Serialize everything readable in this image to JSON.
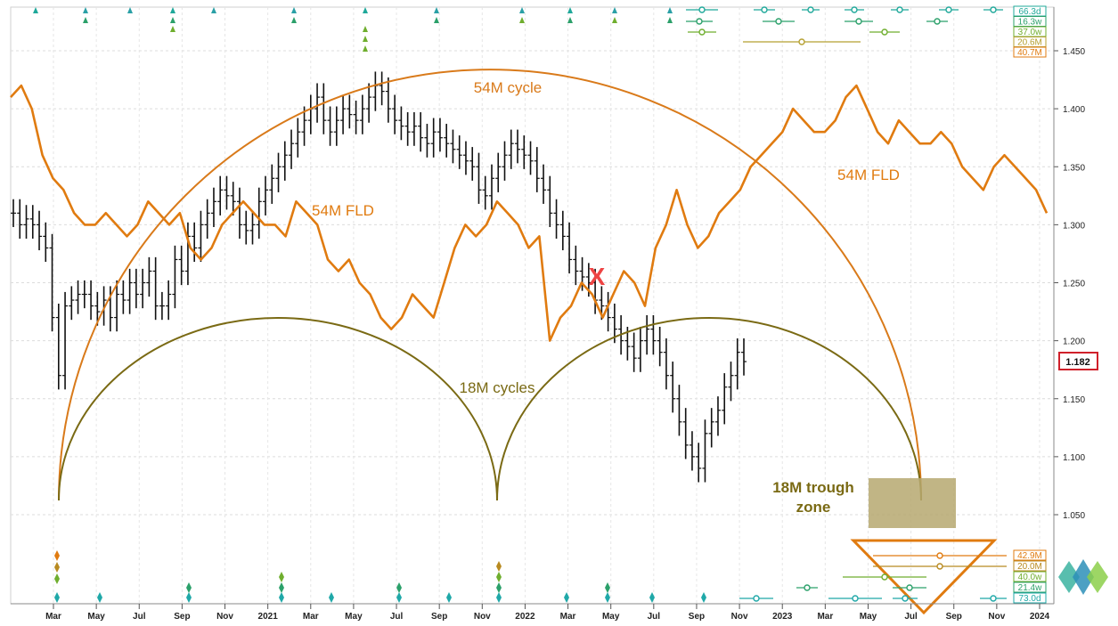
{
  "chart_data": {
    "type": "line",
    "ylim": [
      1.035,
      1.47
    ],
    "yticks": [
      "1.050",
      "1.100",
      "1.150",
      "1.200",
      "1.250",
      "1.300",
      "1.350",
      "1.400",
      "1.450"
    ],
    "xticks": [
      "Mar",
      "May",
      "Jul",
      "Sep",
      "Nov",
      "2021",
      "Mar",
      "May",
      "Jul",
      "Sep",
      "Nov",
      "2022",
      "Mar",
      "May",
      "Jul",
      "Sep",
      "Nov",
      "2023",
      "Mar",
      "May",
      "Jul",
      "Sep",
      "Nov",
      "2024"
    ],
    "grid": true,
    "last_price": "1.182",
    "price_series": [
      1.31,
      1.3,
      1.305,
      1.3,
      1.29,
      1.28,
      1.22,
      1.17,
      1.23,
      1.235,
      1.24,
      1.24,
      1.23,
      1.225,
      1.235,
      1.22,
      1.24,
      1.235,
      1.25,
      1.24,
      1.25,
      1.26,
      1.23,
      1.23,
      1.24,
      1.27,
      1.26,
      1.29,
      1.28,
      1.3,
      1.31,
      1.32,
      1.33,
      1.325,
      1.32,
      1.3,
      1.295,
      1.3,
      1.32,
      1.33,
      1.34,
      1.35,
      1.36,
      1.37,
      1.38,
      1.39,
      1.4,
      1.41,
      1.39,
      1.38,
      1.39,
      1.4,
      1.395,
      1.39,
      1.4,
      1.41,
      1.42,
      1.415,
      1.4,
      1.39,
      1.385,
      1.38,
      1.385,
      1.375,
      1.37,
      1.38,
      1.375,
      1.37,
      1.365,
      1.36,
      1.355,
      1.35,
      1.33,
      1.325,
      1.34,
      1.35,
      1.36,
      1.37,
      1.365,
      1.36,
      1.355,
      1.34,
      1.33,
      1.31,
      1.3,
      1.29,
      1.27,
      1.26,
      1.255,
      1.25,
      1.235,
      1.23,
      1.22,
      1.21,
      1.2,
      1.195,
      1.185,
      1.2,
      1.21,
      1.2,
      1.19,
      1.17,
      1.15,
      1.13,
      1.11,
      1.1,
      1.09,
      1.12,
      1.13,
      1.14,
      1.16,
      1.17,
      1.19,
      1.182
    ],
    "fld_series": [
      1.41,
      1.42,
      1.4,
      1.36,
      1.34,
      1.33,
      1.31,
      1.3,
      1.3,
      1.31,
      1.3,
      1.29,
      1.3,
      1.32,
      1.31,
      1.3,
      1.31,
      1.28,
      1.27,
      1.28,
      1.3,
      1.31,
      1.32,
      1.31,
      1.3,
      1.3,
      1.29,
      1.32,
      1.31,
      1.3,
      1.27,
      1.26,
      1.27,
      1.25,
      1.24,
      1.22,
      1.21,
      1.22,
      1.24,
      1.23,
      1.22,
      1.25,
      1.28,
      1.3,
      1.29,
      1.3,
      1.32,
      1.31,
      1.3,
      1.28,
      1.29,
      1.2,
      1.22,
      1.23,
      1.25,
      1.24,
      1.22,
      1.24,
      1.26,
      1.25,
      1.23,
      1.28,
      1.3,
      1.33,
      1.3,
      1.28,
      1.29,
      1.31,
      1.32,
      1.33,
      1.35,
      1.36,
      1.37,
      1.38,
      1.4,
      1.39,
      1.38,
      1.38,
      1.39,
      1.41,
      1.42,
      1.4,
      1.38,
      1.37,
      1.39,
      1.38,
      1.37,
      1.37,
      1.38,
      1.37,
      1.35,
      1.34,
      1.33,
      1.35,
      1.36,
      1.35,
      1.34,
      1.33,
      1.31
    ],
    "legend_boxes_top": [
      "66.3d",
      "16.3w",
      "37.0w",
      "20.6M",
      "40.7M"
    ],
    "legend_boxes_bottom": [
      "42.9M",
      "20.0M",
      "40.0w",
      "21.4w",
      "73.0d"
    ]
  },
  "annotations": {
    "cycle54": "54M cycle",
    "fld_left": "54M FLD",
    "fld_right": "54M FLD",
    "cycles18": "18M cycles",
    "trough_zone_line1": "18M trough",
    "trough_zone_line2": "zone",
    "cross_mark": "X"
  },
  "colors": {
    "fld": "#e07b10",
    "cycle54": "#d97a1a",
    "cycle18": "#7a6a14",
    "price": "#111111",
    "trough_zone": "#b6a870",
    "price_box": "#d0202a",
    "cross": "#ee4444"
  }
}
